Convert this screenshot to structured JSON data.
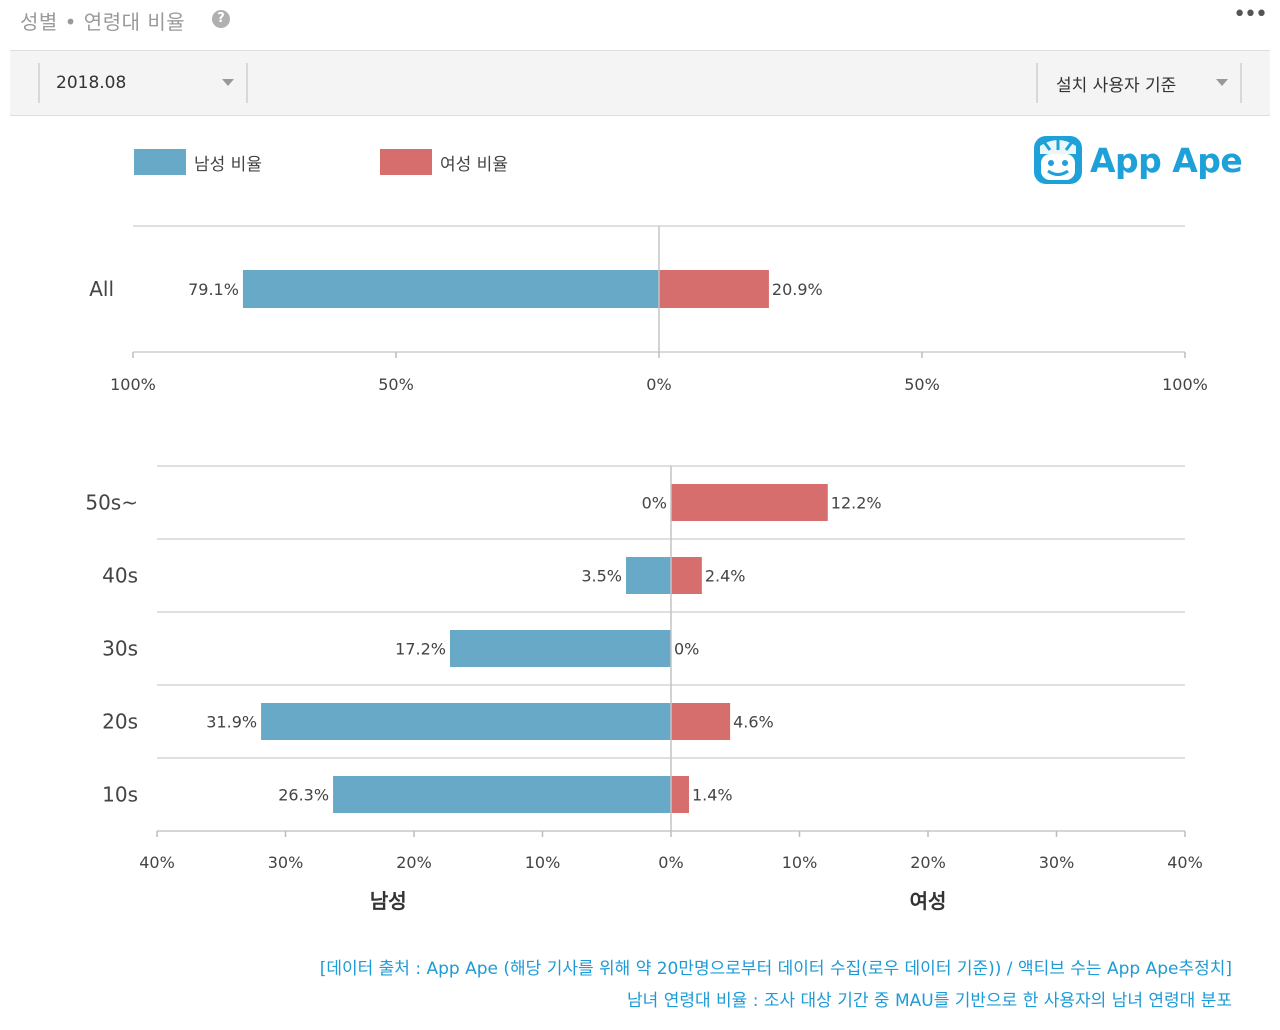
{
  "header": {
    "title": "성별 • 연령대 비율",
    "help_icon": "?",
    "more_icon": "•••"
  },
  "toolbar": {
    "period": "2018.08",
    "basis": "설치 사용자 기준"
  },
  "legend": {
    "male": "남성 비율",
    "female": "여성 비율"
  },
  "logo": {
    "text": "App Ape",
    "icon": "ape-face-icon"
  },
  "colors": {
    "male": "#67a9c7",
    "female": "#d76e6e",
    "brand": "#1ea0d8"
  },
  "chart_data": [
    {
      "type": "bar",
      "orientation": "horizontal-diverging",
      "categories": [
        "All"
      ],
      "series": [
        {
          "name": "남성 비율",
          "values": [
            79.1
          ],
          "labels": [
            "79.1%"
          ]
        },
        {
          "name": "여성 비율",
          "values": [
            20.9
          ],
          "labels": [
            "20.9%"
          ]
        }
      ],
      "xlim": [
        -100,
        100
      ],
      "tick_values": [
        -100,
        -50,
        0,
        50,
        100
      ],
      "tick_labels": [
        "100%",
        "50%",
        "0%",
        "50%",
        "100%"
      ]
    },
    {
      "type": "bar",
      "orientation": "horizontal-diverging",
      "categories": [
        "50s~",
        "40s",
        "30s",
        "20s",
        "10s"
      ],
      "series": [
        {
          "name": "남성",
          "values": [
            0,
            3.5,
            17.2,
            31.9,
            26.3
          ],
          "labels": [
            "0%",
            "3.5%",
            "17.2%",
            "31.9%",
            "26.3%"
          ]
        },
        {
          "name": "여성",
          "values": [
            12.2,
            2.4,
            0,
            4.6,
            1.4
          ],
          "labels": [
            "12.2%",
            "2.4%",
            "0%",
            "4.6%",
            "1.4%"
          ]
        }
      ],
      "xlim": [
        -40,
        40
      ],
      "tick_values": [
        -40,
        -30,
        -20,
        -10,
        0,
        10,
        20,
        30,
        40
      ],
      "tick_labels": [
        "40%",
        "30%",
        "20%",
        "10%",
        "0%",
        "10%",
        "20%",
        "30%",
        "40%"
      ],
      "xlabel_left": "남성",
      "xlabel_right": "여성"
    }
  ],
  "footer": {
    "line1": "[데이터 출처 : App Ape (해당 기사를 위해 약 20만명으로부터 데이터 수집(로우 데이터 기준)) / 액티브 수는 App Ape추정치]",
    "line2": "남녀 연령대 비율 : 조사 대상 기간 중 MAU를 기반으로 한 사용자의 남녀 연령대 분포"
  }
}
